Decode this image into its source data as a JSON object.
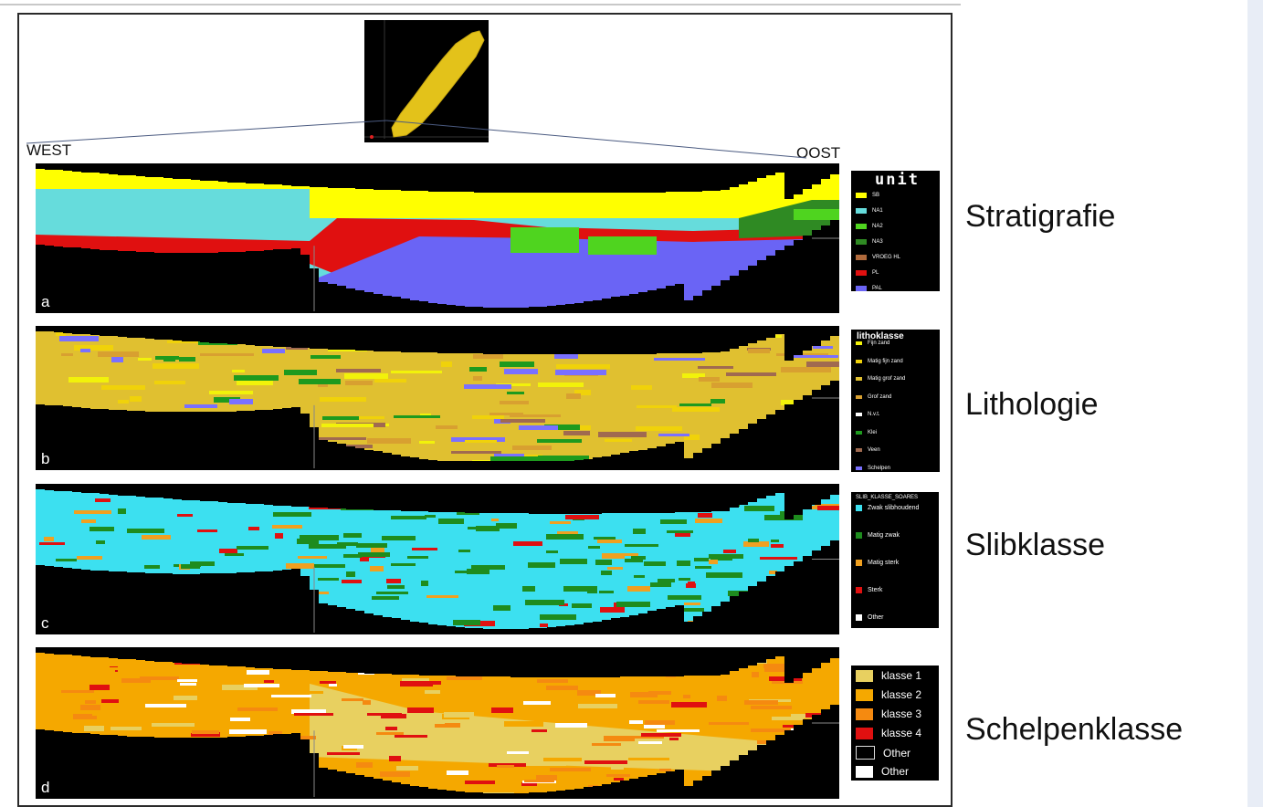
{
  "keymap_colors": {
    "bg": "#000000",
    "shape": "#e3c21a",
    "accent": "#7a6cff"
  },
  "labels": {
    "west": "WEST",
    "east": "OOST"
  },
  "panels": [
    {
      "letter": "a",
      "side_label": "Stratigrafie",
      "legend_title": "unit",
      "legend_items": [
        {
          "label": "SB",
          "color": "#ffff00"
        },
        {
          "label": "NA1",
          "color": "#66dcdc"
        },
        {
          "label": "NA2",
          "color": "#4fd41f"
        },
        {
          "label": "NA3",
          "color": "#2f8a23"
        },
        {
          "label": "VROEG HL",
          "color": "#b06a3c"
        },
        {
          "label": "PL",
          "color": "#e01010"
        },
        {
          "label": "PAL",
          "color": "#6a64f5"
        }
      ]
    },
    {
      "letter": "b",
      "side_label": "Lithologie",
      "legend_title": "lithoklasse",
      "legend_items": [
        {
          "label": "Fijn zand",
          "color": "#f2f20a"
        },
        {
          "label": "Matig fijn zand",
          "color": "#f0d20a"
        },
        {
          "label": "Matig grof zand",
          "color": "#e0c030"
        },
        {
          "label": "Grof zand",
          "color": "#d8a030"
        },
        {
          "label": "N.v.t.",
          "color": "#ffffff"
        },
        {
          "label": "Klei",
          "color": "#1e9a1e"
        },
        {
          "label": "Veen",
          "color": "#a06a50"
        },
        {
          "label": "Schelpen",
          "color": "#7a70ff"
        }
      ]
    },
    {
      "letter": "c",
      "side_label": "Slibklasse",
      "legend_title": "SLIB_KLASSE_SOARES",
      "legend_items": [
        {
          "label": "Zwak slibhoudend",
          "color": "#3ce0f0"
        },
        {
          "label": "Matig zwak",
          "color": "#1e8c1e"
        },
        {
          "label": "Matig sterk",
          "color": "#f0a020"
        },
        {
          "label": "Sterk",
          "color": "#e01010"
        },
        {
          "label": "Other",
          "color": "#ffffff"
        }
      ]
    },
    {
      "letter": "d",
      "side_label": "Schelpenklasse",
      "legend_title": "",
      "legend_items": [
        {
          "label": "klasse 1",
          "color": "#e8d060"
        },
        {
          "label": "klasse 2",
          "color": "#f5a800"
        },
        {
          "label": "klasse 3",
          "color": "#f58a10"
        },
        {
          "label": "klasse 4",
          "color": "#e01010"
        },
        {
          "label": "Other",
          "color": "#000000"
        },
        {
          "label": "Other",
          "color": "#ffffff"
        }
      ]
    }
  ]
}
